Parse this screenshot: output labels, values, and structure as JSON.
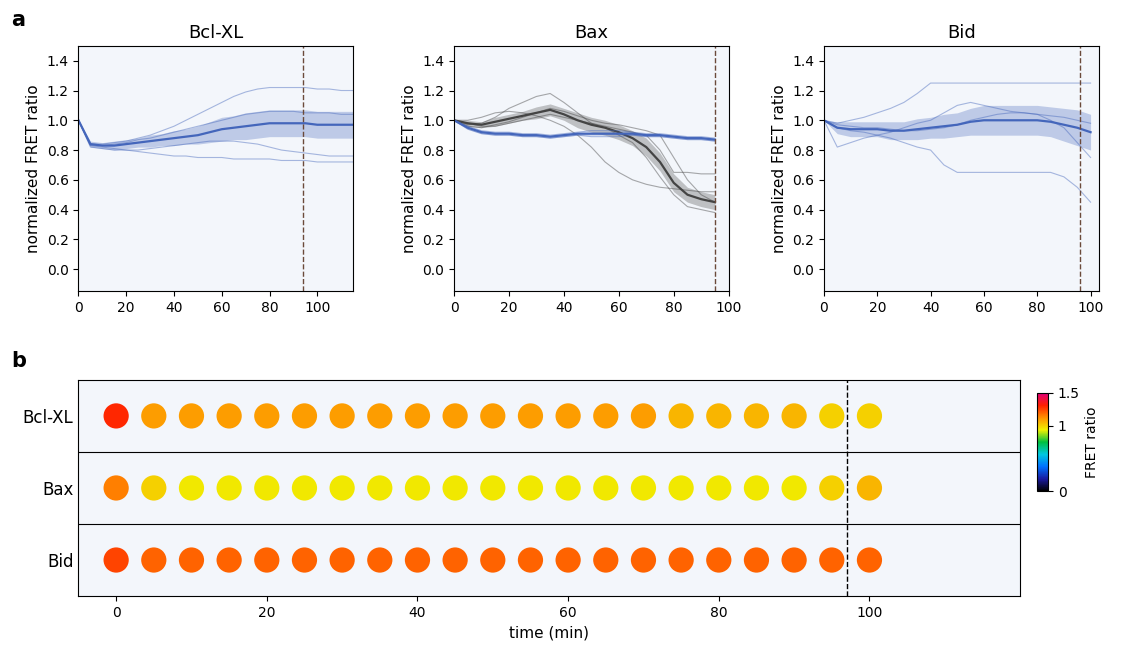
{
  "chart_data": [
    {
      "type": "line",
      "panel_label": "a",
      "title": "Bcl-XL",
      "ylabel": "normalized FRET ratio",
      "x": [
        0,
        5,
        10,
        15,
        20,
        25,
        30,
        35,
        40,
        45,
        50,
        55,
        60,
        65,
        70,
        75,
        80,
        85,
        90,
        95,
        100,
        105,
        110,
        115
      ],
      "xlim": [
        0,
        115
      ],
      "xticks": [
        0,
        20,
        40,
        60,
        80,
        100
      ],
      "ylim": [
        -0.15,
        1.5
      ],
      "yticks": [
        0.0,
        0.2,
        0.4,
        0.6,
        0.8,
        1.0,
        1.2,
        1.4
      ],
      "event_x": 94,
      "groups": [
        {
          "color": "#4466bb",
          "mean": [
            1.0,
            0.84,
            0.83,
            0.83,
            0.84,
            0.85,
            0.86,
            0.87,
            0.88,
            0.89,
            0.9,
            0.92,
            0.94,
            0.95,
            0.96,
            0.97,
            0.98,
            0.98,
            0.98,
            0.98,
            0.97,
            0.97,
            0.97,
            0.97
          ],
          "band_lower": [
            1.0,
            0.82,
            0.81,
            0.8,
            0.81,
            0.82,
            0.82,
            0.83,
            0.83,
            0.84,
            0.84,
            0.85,
            0.86,
            0.87,
            0.87,
            0.88,
            0.89,
            0.89,
            0.89,
            0.89,
            0.88,
            0.88,
            0.88,
            0.88
          ],
          "band_upper": [
            1.0,
            0.86,
            0.85,
            0.86,
            0.87,
            0.88,
            0.9,
            0.91,
            0.93,
            0.94,
            0.96,
            0.99,
            1.02,
            1.03,
            1.05,
            1.06,
            1.07,
            1.07,
            1.07,
            1.07,
            1.06,
            1.06,
            1.06,
            1.06
          ],
          "traces": [
            [
              1.0,
              0.84,
              0.84,
              0.85,
              0.86,
              0.88,
              0.9,
              0.93,
              0.96,
              1.0,
              1.04,
              1.08,
              1.12,
              1.16,
              1.19,
              1.21,
              1.22,
              1.22,
              1.22,
              1.22,
              1.21,
              1.21,
              1.2,
              1.2
            ],
            [
              1.0,
              0.83,
              0.83,
              0.84,
              0.85,
              0.87,
              0.88,
              0.9,
              0.92,
              0.94,
              0.96,
              0.98,
              1.0,
              1.02,
              1.04,
              1.05,
              1.06,
              1.06,
              1.06,
              1.05,
              1.05,
              1.05,
              1.04,
              1.04
            ],
            [
              1.0,
              0.82,
              0.81,
              0.8,
              0.8,
              0.8,
              0.81,
              0.82,
              0.83,
              0.84,
              0.85,
              0.86,
              0.86,
              0.86,
              0.85,
              0.84,
              0.82,
              0.8,
              0.79,
              0.78,
              0.77,
              0.76,
              0.76,
              0.76
            ],
            [
              1.0,
              0.83,
              0.82,
              0.81,
              0.8,
              0.79,
              0.78,
              0.77,
              0.76,
              0.76,
              0.75,
              0.75,
              0.75,
              0.74,
              0.74,
              0.74,
              0.74,
              0.73,
              0.73,
              0.73,
              0.72,
              0.72,
              0.72,
              0.72
            ]
          ]
        }
      ]
    },
    {
      "type": "line",
      "title": "Bax",
      "ylabel": "normalized FRET ratio",
      "x": [
        0,
        5,
        10,
        15,
        20,
        25,
        30,
        35,
        40,
        45,
        50,
        55,
        60,
        65,
        70,
        75,
        80,
        85,
        90,
        95
      ],
      "xlim": [
        0,
        100
      ],
      "xticks": [
        0,
        20,
        40,
        60,
        80,
        100
      ],
      "ylim": [
        -0.15,
        1.5
      ],
      "yticks": [
        0.0,
        0.2,
        0.4,
        0.6,
        0.8,
        1.0,
        1.2,
        1.4
      ],
      "event_x": 95,
      "groups": [
        {
          "color": "#444444",
          "mean": [
            1.0,
            0.98,
            0.97,
            0.99,
            1.01,
            1.03,
            1.05,
            1.07,
            1.04,
            1.0,
            0.97,
            0.95,
            0.92,
            0.88,
            0.82,
            0.72,
            0.58,
            0.5,
            0.47,
            0.45
          ],
          "band_lower": [
            1.0,
            0.96,
            0.95,
            0.96,
            0.98,
            1.0,
            1.01,
            1.03,
            1.0,
            0.95,
            0.92,
            0.9,
            0.87,
            0.83,
            0.76,
            0.66,
            0.52,
            0.45,
            0.42,
            0.4
          ],
          "band_upper": [
            1.0,
            1.0,
            0.99,
            1.02,
            1.04,
            1.06,
            1.09,
            1.11,
            1.08,
            1.05,
            1.02,
            1.0,
            0.97,
            0.93,
            0.88,
            0.78,
            0.64,
            0.55,
            0.52,
            0.5
          ],
          "traces": [
            [
              1.0,
              0.97,
              0.98,
              1.02,
              1.08,
              1.12,
              1.16,
              1.18,
              1.12,
              1.05,
              0.98,
              0.95,
              0.9,
              0.85,
              0.75,
              0.62,
              0.5,
              0.42,
              0.4,
              0.38
            ],
            [
              1.0,
              1.0,
              1.02,
              1.05,
              1.06,
              1.05,
              1.03,
              1.0,
              0.96,
              0.9,
              0.82,
              0.72,
              0.65,
              0.6,
              0.57,
              0.55,
              0.54,
              0.53,
              0.52,
              0.52
            ],
            [
              1.0,
              0.96,
              0.95,
              0.97,
              0.99,
              1.02,
              1.05,
              1.08,
              1.06,
              1.03,
              1.0,
              0.98,
              0.97,
              0.95,
              0.93,
              0.9,
              0.75,
              0.6,
              0.5,
              0.45
            ],
            [
              1.0,
              0.98,
              0.96,
              0.96,
              0.98,
              1.0,
              1.02,
              1.04,
              1.02,
              1.0,
              0.98,
              0.96,
              0.94,
              0.92,
              0.9,
              0.8,
              0.65,
              0.65,
              0.64,
              0.64
            ]
          ]
        },
        {
          "color": "#4466bb",
          "mean": [
            1.0,
            0.95,
            0.92,
            0.91,
            0.91,
            0.9,
            0.9,
            0.89,
            0.9,
            0.91,
            0.91,
            0.91,
            0.91,
            0.91,
            0.9,
            0.9,
            0.89,
            0.88,
            0.88,
            0.87
          ],
          "band_lower": [
            1.0,
            0.94,
            0.91,
            0.9,
            0.9,
            0.89,
            0.89,
            0.88,
            0.89,
            0.9,
            0.9,
            0.9,
            0.9,
            0.9,
            0.89,
            0.89,
            0.88,
            0.87,
            0.87,
            0.86
          ],
          "band_upper": [
            1.0,
            0.96,
            0.93,
            0.92,
            0.92,
            0.91,
            0.91,
            0.9,
            0.91,
            0.92,
            0.92,
            0.92,
            0.92,
            0.92,
            0.91,
            0.91,
            0.9,
            0.89,
            0.89,
            0.88
          ],
          "traces": [
            [
              1.0,
              0.96,
              0.93,
              0.92,
              0.92,
              0.91,
              0.91,
              0.9,
              0.91,
              0.92,
              0.93,
              0.93,
              0.93,
              0.92,
              0.91,
              0.91,
              0.9,
              0.89,
              0.89,
              0.88
            ],
            [
              1.0,
              0.94,
              0.91,
              0.9,
              0.9,
              0.89,
              0.89,
              0.88,
              0.89,
              0.9,
              0.89,
              0.89,
              0.89,
              0.9,
              0.89,
              0.89,
              0.88,
              0.87,
              0.87,
              0.86
            ]
          ]
        }
      ]
    },
    {
      "type": "line",
      "title": "Bid",
      "ylabel": "normalized FRET ratio",
      "x": [
        0,
        5,
        10,
        15,
        20,
        25,
        30,
        35,
        40,
        45,
        50,
        55,
        60,
        65,
        70,
        75,
        80,
        85,
        90,
        95,
        100
      ],
      "xlim": [
        0,
        103
      ],
      "xticks": [
        0,
        20,
        40,
        60,
        80,
        100
      ],
      "ylim": [
        -0.15,
        1.5
      ],
      "yticks": [
        0.0,
        0.2,
        0.4,
        0.6,
        0.8,
        1.0,
        1.2,
        1.4
      ],
      "event_x": 96,
      "groups": [
        {
          "color": "#4466bb",
          "mean": [
            1.0,
            0.95,
            0.94,
            0.94,
            0.94,
            0.93,
            0.93,
            0.94,
            0.95,
            0.96,
            0.97,
            0.99,
            1.0,
            1.0,
            1.0,
            1.0,
            1.0,
            0.99,
            0.97,
            0.95,
            0.92
          ],
          "band_lower": [
            1.0,
            0.91,
            0.89,
            0.89,
            0.89,
            0.87,
            0.87,
            0.87,
            0.88,
            0.88,
            0.89,
            0.9,
            0.9,
            0.9,
            0.9,
            0.9,
            0.9,
            0.89,
            0.86,
            0.83,
            0.8
          ],
          "band_upper": [
            1.0,
            0.99,
            0.99,
            0.99,
            0.99,
            0.99,
            0.99,
            1.01,
            1.02,
            1.04,
            1.05,
            1.08,
            1.1,
            1.1,
            1.1,
            1.1,
            1.1,
            1.09,
            1.08,
            1.07,
            1.04
          ],
          "traces": [
            [
              1.0,
              0.98,
              1.0,
              1.02,
              1.05,
              1.08,
              1.12,
              1.18,
              1.25,
              1.25,
              1.25,
              1.25,
              1.25,
              1.25,
              1.25,
              1.25,
              1.25,
              1.25,
              1.25,
              1.25,
              1.25
            ],
            [
              1.0,
              0.82,
              0.85,
              0.88,
              0.9,
              0.92,
              0.95,
              0.98,
              1.0,
              1.05,
              1.1,
              1.12,
              1.1,
              1.08,
              1.06,
              1.05,
              1.04,
              1.03,
              1.02,
              1.0,
              0.98
            ],
            [
              1.0,
              0.95,
              0.93,
              0.92,
              0.9,
              0.88,
              0.85,
              0.82,
              0.8,
              0.7,
              0.65,
              0.65,
              0.65,
              0.65,
              0.65,
              0.65,
              0.65,
              0.65,
              0.62,
              0.55,
              0.45
            ],
            [
              1.0,
              0.97,
              0.96,
              0.95,
              0.95,
              0.94,
              0.93,
              0.93,
              0.94,
              0.95,
              0.97,
              1.0,
              1.02,
              1.04,
              1.05,
              1.05,
              1.04,
              1.0,
              0.95,
              0.85,
              0.75
            ]
          ]
        }
      ]
    },
    {
      "type": "image_strip",
      "panel_label": "b",
      "xlabel": "time (min)",
      "categories": [
        "Bcl-XL",
        "Bax",
        "Bid"
      ],
      "x": [
        0,
        5,
        10,
        15,
        20,
        25,
        30,
        35,
        40,
        45,
        50,
        55,
        60,
        65,
        70,
        75,
        80,
        85,
        90,
        95,
        100
      ],
      "xlim": [
        -5,
        120
      ],
      "xticks": [
        0,
        20,
        40,
        60,
        80,
        100
      ],
      "event_x": 97,
      "frame_values": [
        [
          1.3,
          1.1,
          1.1,
          1.1,
          1.1,
          1.1,
          1.1,
          1.1,
          1.1,
          1.1,
          1.1,
          1.1,
          1.1,
          1.1,
          1.1,
          1.05,
          1.05,
          1.05,
          1.05,
          1.0,
          1.0
        ],
        [
          1.15,
          1.0,
          0.95,
          0.95,
          0.95,
          0.95,
          0.95,
          0.95,
          0.95,
          0.95,
          0.95,
          0.95,
          0.95,
          0.95,
          0.95,
          0.95,
          0.95,
          0.95,
          0.95,
          1.0,
          1.05
        ],
        [
          1.25,
          1.2,
          1.2,
          1.2,
          1.2,
          1.2,
          1.2,
          1.2,
          1.2,
          1.2,
          1.2,
          1.2,
          1.2,
          1.2,
          1.2,
          1.2,
          1.2,
          1.2,
          1.2,
          1.2,
          1.2
        ]
      ],
      "colorbar_label": "FRET ratio",
      "colorbar_range": [
        0,
        1.5
      ],
      "colorbar_ticks": [
        0,
        1,
        1.5
      ]
    }
  ]
}
